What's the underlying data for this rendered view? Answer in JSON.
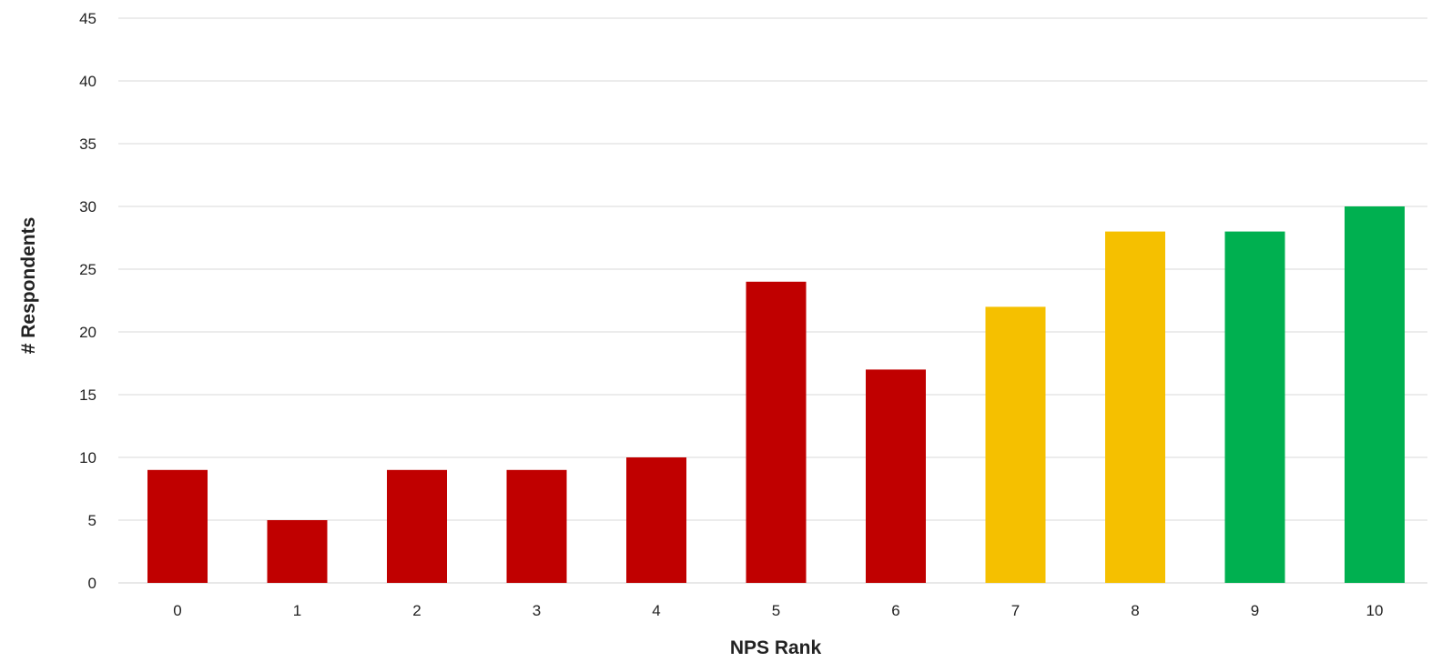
{
  "chart_data": {
    "type": "bar",
    "title": "",
    "xlabel": "NPS Rank",
    "ylabel": "# Respondents",
    "categories": [
      "0",
      "1",
      "2",
      "3",
      "4",
      "5",
      "6",
      "7",
      "8",
      "9",
      "10"
    ],
    "values": [
      9,
      5,
      9,
      9,
      10,
      24,
      17,
      22,
      28,
      28,
      30
    ],
    "bar_colors": [
      "#c00000",
      "#c00000",
      "#c00000",
      "#c00000",
      "#c00000",
      "#c00000",
      "#c00000",
      "#f5c000",
      "#f5c000",
      "#00b050",
      "#00b050"
    ],
    "yticks": [
      "0",
      "5",
      "10",
      "15",
      "20",
      "25",
      "30",
      "35",
      "40",
      "45"
    ],
    "ylim": [
      0,
      45
    ],
    "grid": true,
    "legend": "none"
  }
}
